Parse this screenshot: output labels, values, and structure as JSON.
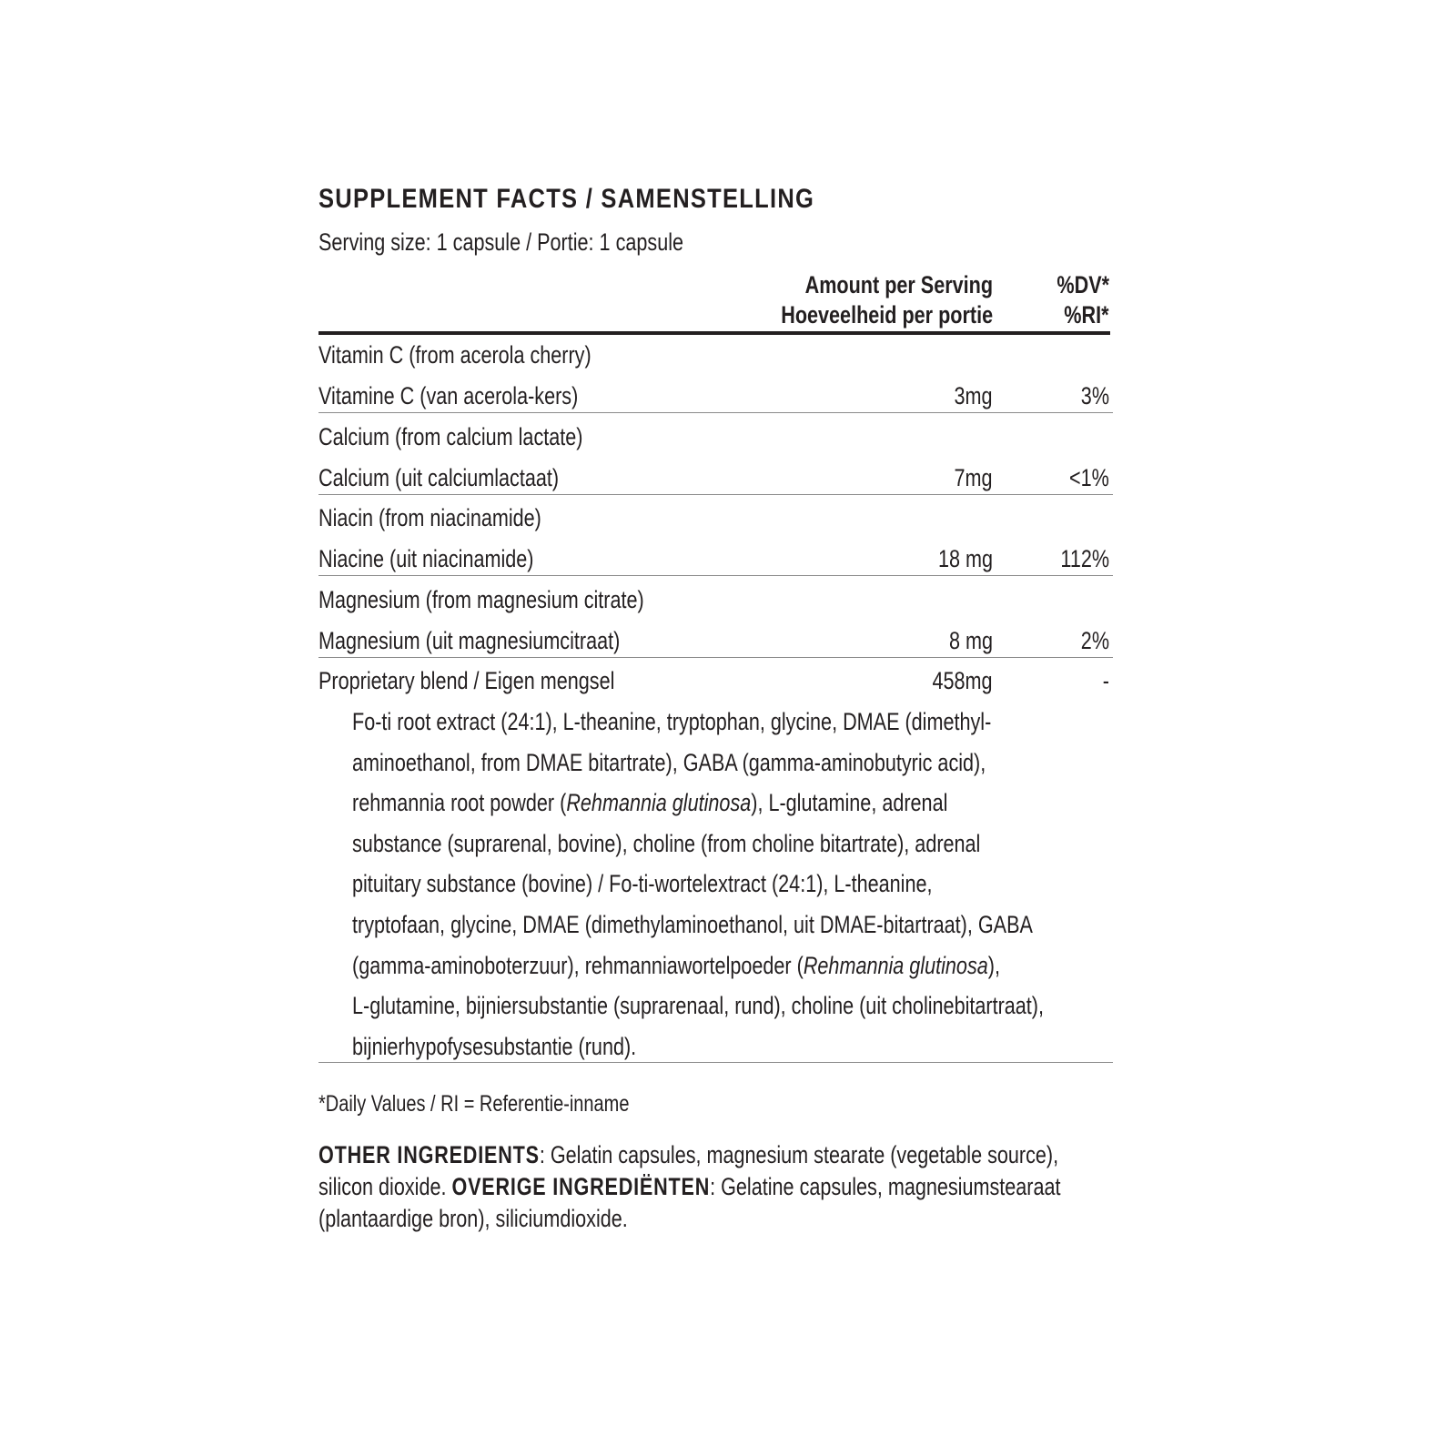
{
  "title": "SUPPLEMENT FACTS / SAMENSTELLING",
  "serving": "Serving size: 1 capsule / Portie: 1 capsule",
  "header": {
    "amount_en": "Amount per Serving",
    "amount_nl": "Hoeveelheid per portie",
    "dv": "%DV*",
    "ri": "%RI*"
  },
  "rows": [
    {
      "name_en": "Vitamin C (from acerola cherry)",
      "name_nl": "Vitamine C (van acerola-kers)",
      "amount": "3mg",
      "dv": "3%"
    },
    {
      "name_en": "Calcium (from calcium lactate)",
      "name_nl": "Calcium (uit calciumlactaat)",
      "amount": "7mg",
      "dv": "<1%"
    },
    {
      "name_en": "Niacin (from niacinamide)",
      "name_nl": "Niacine (uit niacinamide)",
      "amount": "18 mg",
      "dv": "112%"
    },
    {
      "name_en": "Magnesium (from magnesium citrate)",
      "name_nl": "Magnesium (uit magnesiumcitraat)",
      "amount": "8 mg",
      "dv": "2%"
    }
  ],
  "blend": {
    "name": "Proprietary blend / Eigen mengsel",
    "amount": "458mg",
    "dv": "-",
    "lines": [
      [
        {
          "text": "Fo-ti root extract (24:1), L-theanine, tryptophan, glycine, DMAE (dimethyl-"
        }
      ],
      [
        {
          "text": "aminoethanol, from DMAE bitartrate), GABA (gamma-aminobutyric acid),"
        }
      ],
      [
        {
          "text": "rehmannia root powder ("
        },
        {
          "text": "Rehmannia glutinosa",
          "italic": true
        },
        {
          "text": "), L-glutamine, adrenal"
        }
      ],
      [
        {
          "text": "substance (suprarenal, bovine), choline (from choline bitartrate), adrenal"
        }
      ],
      [
        {
          "text": "pituitary substance (bovine) / Fo-ti-wortelextract (24:1), L-theanine,"
        }
      ],
      [
        {
          "text": "tryptofaan, glycine, DMAE (dimethylaminoethanol, uit DMAE-bitartraat), GABA"
        }
      ],
      [
        {
          "text": "(gamma-aminoboterzuur), rehmanniawortelpoeder ("
        },
        {
          "text": "Rehmannia glutinosa",
          "italic": true
        },
        {
          "text": "),"
        }
      ],
      [
        {
          "text": "L-glutamine, bijniersubstantie (suprarenaal, rund), choline (uit cholinebitartraat),"
        }
      ],
      [
        {
          "text": "bijnierhypofysesubstantie (rund)."
        }
      ]
    ]
  },
  "footnote": "*Daily Values / RI = Referentie-inname",
  "other": {
    "label_en": "OTHER INGREDIENTS",
    "text_en": ": Gelatin capsules, magnesium stearate (vegetable source),",
    "text_en2": "silicon dioxide. ",
    "label_nl": "OVERIGE INGREDIËNTEN",
    "text_nl": ": Gelatine capsules, magnesiumstearaat",
    "text_nl2": "(plantaardige bron), siliciumdioxide."
  }
}
